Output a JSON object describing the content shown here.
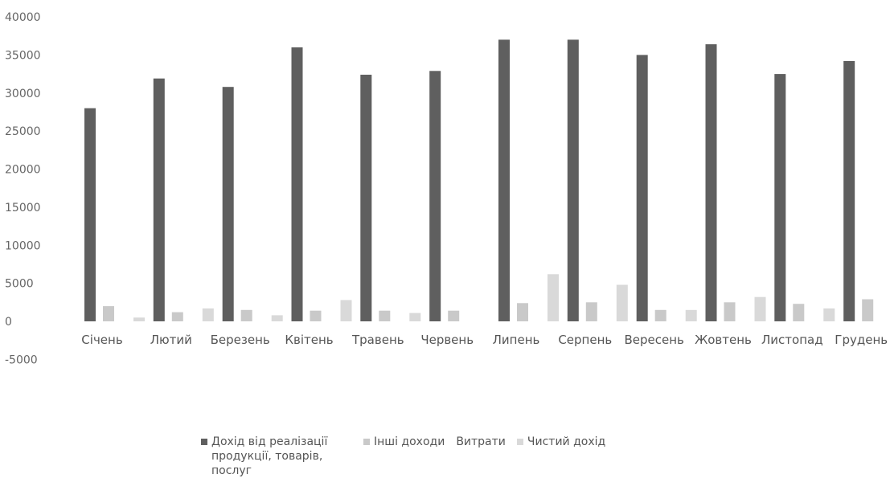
{
  "chart_data": {
    "type": "bar",
    "title": "",
    "xlabel": "",
    "ylabel": "",
    "ylim": [
      -5000,
      40000
    ],
    "yticks": [
      -5000,
      0,
      5000,
      10000,
      15000,
      20000,
      25000,
      30000,
      35000,
      40000
    ],
    "grid": false,
    "legend_position": "bottom",
    "categories": [
      "Січень",
      "Лютий",
      "Березень",
      "Квітень",
      "Травень",
      "Червень",
      "Липень",
      "Серпень",
      "Вересень",
      "Жовтень",
      "Листопад",
      "Грудень"
    ],
    "series": [
      {
        "name": "Дохід від реалізації продукції, товарів, послуг",
        "color": "#5f5f5f",
        "values": [
          28000,
          31900,
          30800,
          36000,
          32400,
          32900,
          37000,
          37000,
          35000,
          36400,
          32500,
          34200
        ]
      },
      {
        "name": "Інші доходи",
        "color": "#c9c9c9",
        "values": [
          2000,
          1200,
          1500,
          1400,
          1400,
          1400,
          2400,
          2500,
          1500,
          2500,
          2300,
          2900
        ]
      },
      {
        "name": "Витрати",
        "color": "#ffffff",
        "values": [
          0,
          0,
          0,
          0,
          0,
          0,
          0,
          0,
          0,
          0,
          0,
          0
        ]
      },
      {
        "name": "Чистий дохід",
        "color": "#d9d9d9",
        "values": [
          500,
          1700,
          800,
          2800,
          1100,
          0,
          6200,
          4800,
          1500,
          3200,
          1700,
          -900
        ]
      }
    ]
  }
}
